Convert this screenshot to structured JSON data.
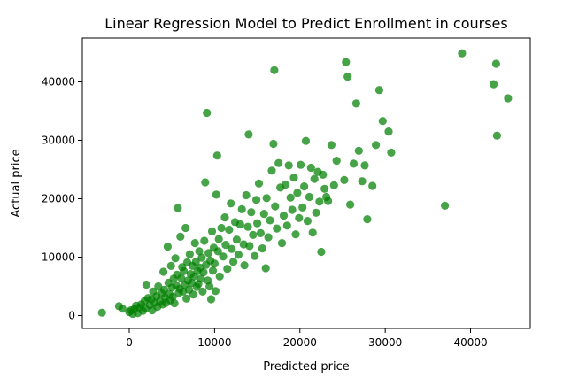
{
  "chart_data": {
    "type": "scatter",
    "title": "Linear Regression Model to Predict Enrollment in courses",
    "xlabel": "Predicted price",
    "ylabel": "Actual price",
    "xlim": [
      -5500,
      47000
    ],
    "ylim": [
      -2200,
      47500
    ],
    "x_ticks": [
      0,
      10000,
      20000,
      30000,
      40000
    ],
    "y_ticks": [
      0,
      10000,
      20000,
      30000,
      40000
    ],
    "x_tick_labels": [
      "0",
      "10000",
      "20000",
      "30000",
      "40000"
    ],
    "y_tick_labels": [
      "0",
      "10000",
      "20000",
      "30000",
      "40000"
    ],
    "grid": false,
    "legend": "none",
    "point_color": "#008000",
    "points": [
      [
        -3200,
        500
      ],
      [
        -1200,
        1600
      ],
      [
        -800,
        1200
      ],
      [
        0,
        600
      ],
      [
        200,
        900
      ],
      [
        400,
        300
      ],
      [
        600,
        1100
      ],
      [
        800,
        1700
      ],
      [
        1000,
        400
      ],
      [
        1200,
        1400
      ],
      [
        1400,
        1900
      ],
      [
        1600,
        800
      ],
      [
        1800,
        2500
      ],
      [
        1900,
        1200
      ],
      [
        2000,
        5300
      ],
      [
        2200,
        3000
      ],
      [
        2400,
        1800
      ],
      [
        2600,
        2800
      ],
      [
        2700,
        900
      ],
      [
        2800,
        4100
      ],
      [
        3000,
        2200
      ],
      [
        3200,
        3300
      ],
      [
        3300,
        1500
      ],
      [
        3400,
        5000
      ],
      [
        3600,
        2500
      ],
      [
        3800,
        3800
      ],
      [
        3900,
        1900
      ],
      [
        4000,
        7500
      ],
      [
        4100,
        4400
      ],
      [
        4200,
        3100
      ],
      [
        4300,
        2200
      ],
      [
        4500,
        11800
      ],
      [
        4600,
        5600
      ],
      [
        4700,
        3700
      ],
      [
        4800,
        2600
      ],
      [
        4900,
        8500
      ],
      [
        5000,
        4800
      ],
      [
        5100,
        3200
      ],
      [
        5200,
        6300
      ],
      [
        5300,
        2100
      ],
      [
        5400,
        9800
      ],
      [
        5500,
        5200
      ],
      [
        5600,
        7000
      ],
      [
        5700,
        18400
      ],
      [
        5800,
        3900
      ],
      [
        5900,
        4600
      ],
      [
        6000,
        13500
      ],
      [
        6100,
        6400
      ],
      [
        6200,
        8300
      ],
      [
        6300,
        4100
      ],
      [
        6400,
        7600
      ],
      [
        6500,
        5300
      ],
      [
        6600,
        15000
      ],
      [
        6700,
        2900
      ],
      [
        6800,
        9100
      ],
      [
        6900,
        6000
      ],
      [
        7000,
        4400
      ],
      [
        7100,
        10500
      ],
      [
        7200,
        7100
      ],
      [
        7300,
        5600
      ],
      [
        7400,
        8500
      ],
      [
        7500,
        3600
      ],
      [
        7600,
        6700
      ],
      [
        7700,
        12400
      ],
      [
        7800,
        9200
      ],
      [
        7900,
        4900
      ],
      [
        8000,
        7600
      ],
      [
        8100,
        5400
      ],
      [
        8200,
        11000
      ],
      [
        8300,
        8200
      ],
      [
        8400,
        6300
      ],
      [
        8500,
        9900
      ],
      [
        8600,
        4100
      ],
      [
        8700,
        7400
      ],
      [
        8800,
        12800
      ],
      [
        8900,
        22800
      ],
      [
        9000,
        8700
      ],
      [
        9100,
        34700
      ],
      [
        9200,
        6000
      ],
      [
        9300,
        10700
      ],
      [
        9400,
        5000
      ],
      [
        9500,
        9400
      ],
      [
        9600,
        2800
      ],
      [
        9700,
        14400
      ],
      [
        9800,
        7700
      ],
      [
        9900,
        11600
      ],
      [
        10000,
        8900
      ],
      [
        10100,
        4200
      ],
      [
        10200,
        20700
      ],
      [
        10300,
        27400
      ],
      [
        10400,
        11000
      ],
      [
        10500,
        13100
      ],
      [
        10600,
        6700
      ],
      [
        10800,
        15000
      ],
      [
        11000,
        10100
      ],
      [
        11200,
        16800
      ],
      [
        11300,
        12100
      ],
      [
        11500,
        8000
      ],
      [
        11700,
        14700
      ],
      [
        11900,
        19200
      ],
      [
        12000,
        11400
      ],
      [
        12200,
        9200
      ],
      [
        12400,
        16000
      ],
      [
        12600,
        13000
      ],
      [
        12800,
        10400
      ],
      [
        13000,
        15600
      ],
      [
        13200,
        18200
      ],
      [
        13400,
        12200
      ],
      [
        13500,
        8600
      ],
      [
        13700,
        20600
      ],
      [
        13900,
        15200
      ],
      [
        14000,
        31000
      ],
      [
        14100,
        11900
      ],
      [
        14300,
        17700
      ],
      [
        14500,
        13800
      ],
      [
        14700,
        10200
      ],
      [
        14900,
        19800
      ],
      [
        15000,
        15800
      ],
      [
        15200,
        22600
      ],
      [
        15400,
        14100
      ],
      [
        15600,
        11500
      ],
      [
        15800,
        17400
      ],
      [
        16000,
        8100
      ],
      [
        16100,
        20100
      ],
      [
        16300,
        13400
      ],
      [
        16500,
        16300
      ],
      [
        16700,
        24800
      ],
      [
        16900,
        29400
      ],
      [
        17000,
        42000
      ],
      [
        17100,
        18700
      ],
      [
        17300,
        14900
      ],
      [
        17500,
        26100
      ],
      [
        17700,
        21900
      ],
      [
        17900,
        12400
      ],
      [
        18100,
        17100
      ],
      [
        18300,
        22400
      ],
      [
        18500,
        15400
      ],
      [
        18700,
        25700
      ],
      [
        18900,
        20200
      ],
      [
        19100,
        18100
      ],
      [
        19300,
        23600
      ],
      [
        19500,
        13900
      ],
      [
        19700,
        21000
      ],
      [
        19900,
        16700
      ],
      [
        20100,
        25800
      ],
      [
        20300,
        18500
      ],
      [
        20500,
        22100
      ],
      [
        20700,
        29900
      ],
      [
        20900,
        16200
      ],
      [
        21100,
        20300
      ],
      [
        21300,
        25300
      ],
      [
        21500,
        14200
      ],
      [
        21700,
        23400
      ],
      [
        21900,
        17600
      ],
      [
        22100,
        24600
      ],
      [
        22300,
        19500
      ],
      [
        22500,
        10900
      ],
      [
        22700,
        24100
      ],
      [
        22900,
        21700
      ],
      [
        23100,
        20300
      ],
      [
        23300,
        19600
      ],
      [
        23700,
        29200
      ],
      [
        24000,
        22300
      ],
      [
        24300,
        26500
      ],
      [
        25200,
        23200
      ],
      [
        25400,
        43400
      ],
      [
        25600,
        40900
      ],
      [
        25900,
        19000
      ],
      [
        26300,
        26000
      ],
      [
        26600,
        36300
      ],
      [
        26900,
        28200
      ],
      [
        27300,
        23000
      ],
      [
        27600,
        25700
      ],
      [
        27900,
        16500
      ],
      [
        28500,
        22200
      ],
      [
        28900,
        29200
      ],
      [
        29300,
        38600
      ],
      [
        29700,
        33300
      ],
      [
        30400,
        31500
      ],
      [
        30700,
        27900
      ],
      [
        37000,
        18800
      ],
      [
        39000,
        44900
      ],
      [
        42700,
        39600
      ],
      [
        43000,
        43100
      ],
      [
        43100,
        30800
      ],
      [
        44400,
        37200
      ]
    ]
  }
}
